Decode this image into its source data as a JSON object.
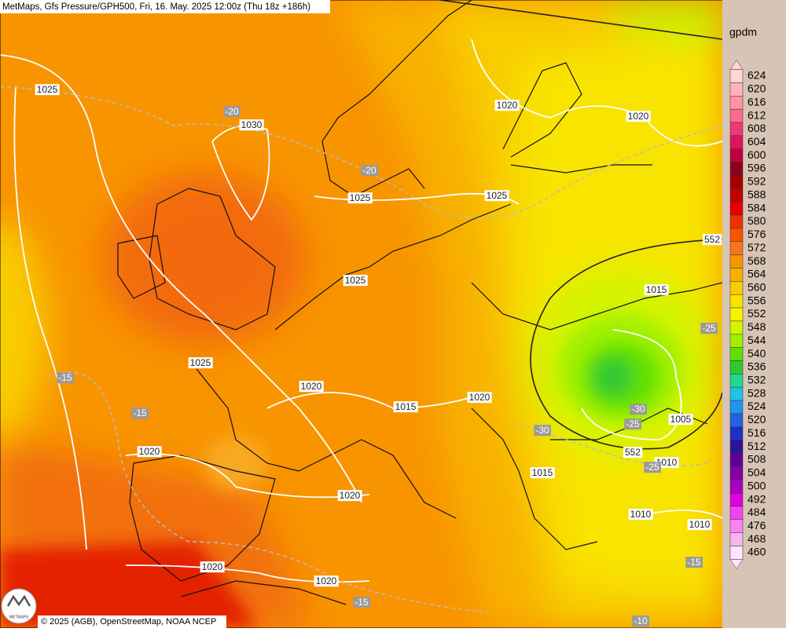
{
  "header": {
    "title": "MetMaps, Gfs Pressure/GPH500, Fri, 16. May. 2025 12:00z (Thu 18z +186h)"
  },
  "legend": {
    "unit": "gpdm",
    "items": [
      {
        "label": "624",
        "color": "#ffd4d4"
      },
      {
        "label": "620",
        "color": "#ffb4bc"
      },
      {
        "label": "616",
        "color": "#ff94a4"
      },
      {
        "label": "612",
        "color": "#ff6890"
      },
      {
        "label": "608",
        "color": "#f03874"
      },
      {
        "label": "604",
        "color": "#e0145c"
      },
      {
        "label": "600",
        "color": "#c00040"
      },
      {
        "label": "596",
        "color": "#8c0018"
      },
      {
        "label": "592",
        "color": "#a40000"
      },
      {
        "label": "588",
        "color": "#c40000"
      },
      {
        "label": "584",
        "color": "#e40000"
      },
      {
        "label": "580",
        "color": "#f03000"
      },
      {
        "label": "576",
        "color": "#f85400"
      },
      {
        "label": "572",
        "color": "#f87420"
      },
      {
        "label": "568",
        "color": "#f89400"
      },
      {
        "label": "564",
        "color": "#f8b000"
      },
      {
        "label": "560",
        "color": "#f8cc00"
      },
      {
        "label": "556",
        "color": "#f8e400"
      },
      {
        "label": "552",
        "color": "#f8f400"
      },
      {
        "label": "548",
        "color": "#d4f400"
      },
      {
        "label": "544",
        "color": "#a0f000"
      },
      {
        "label": "540",
        "color": "#60e000"
      },
      {
        "label": "536",
        "color": "#30c830"
      },
      {
        "label": "532",
        "color": "#20d890"
      },
      {
        "label": "528",
        "color": "#20c4e4"
      },
      {
        "label": "524",
        "color": "#2094f0"
      },
      {
        "label": "520",
        "color": "#2064e0"
      },
      {
        "label": "516",
        "color": "#2030c4"
      },
      {
        "label": "512",
        "color": "#3010a0"
      },
      {
        "label": "508",
        "color": "#600090"
      },
      {
        "label": "504",
        "color": "#8400a4"
      },
      {
        "label": "500",
        "color": "#a800c4"
      },
      {
        "label": "492",
        "color": "#e000e0"
      },
      {
        "label": "484",
        "color": "#f044f0"
      },
      {
        "label": "476",
        "color": "#f884f0"
      },
      {
        "label": "468",
        "color": "#f8b4f0"
      },
      {
        "label": "460",
        "color": "#ffe4ff"
      }
    ]
  },
  "isobar_labels": [
    "1025",
    "1030",
    "1020",
    "1020",
    "1025",
    "1025",
    "1025",
    "1025",
    "1020",
    "1015",
    "1020",
    "1020",
    "1020",
    "1015",
    "1015",
    "1005",
    "1010",
    "1010",
    "1010",
    "1020",
    "1020"
  ],
  "temperature_labels": [
    "-20",
    "-20",
    "-15",
    "-15",
    "-25",
    "-30",
    "-30",
    "-25",
    "-25",
    "-15",
    "-15",
    "-10"
  ],
  "height_labels": [
    "552",
    "552"
  ],
  "footer": {
    "copyright": "© 2025 (AGB), OpenStreetMap, NOAA NCEP",
    "logo": "METMAPS"
  }
}
